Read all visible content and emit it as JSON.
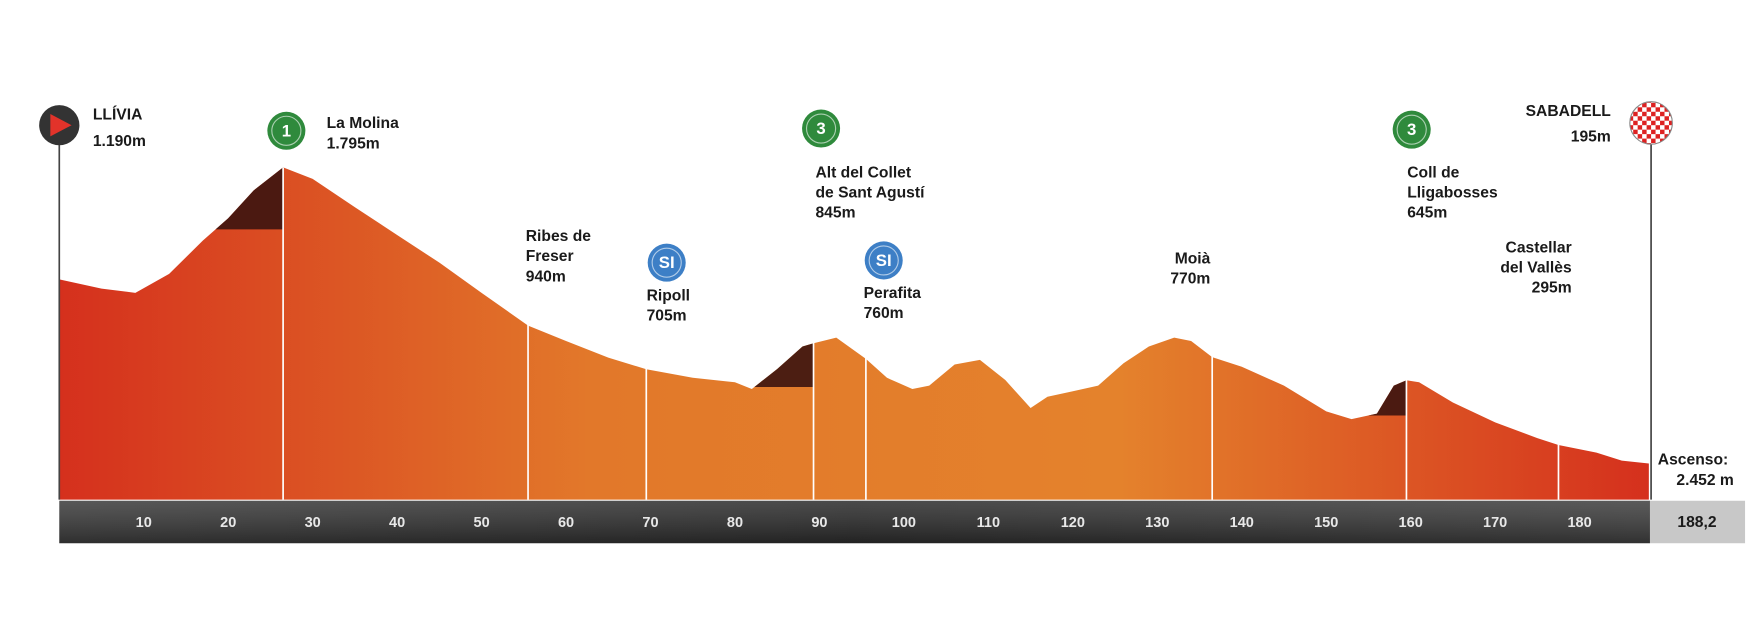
{
  "chart_data": {
    "type": "area",
    "x": [
      0,
      5,
      9,
      13,
      17,
      20,
      23,
      26.5,
      30,
      35,
      40,
      45,
      50,
      55.5,
      60,
      65,
      69.5,
      75,
      80,
      82,
      85,
      88,
      89.3,
      92,
      95.5,
      98,
      101,
      103,
      106,
      109,
      112,
      115,
      117,
      120,
      123,
      126,
      129,
      132,
      134,
      136.5,
      140,
      145,
      150,
      153,
      156,
      158,
      159.5,
      161,
      165,
      170,
      175,
      177.5,
      182,
      185,
      188.2
    ],
    "values": [
      1190,
      1140,
      1117,
      1220,
      1400,
      1520,
      1670,
      1795,
      1733,
      1580,
      1430,
      1280,
      1117,
      940,
      857,
      767,
      705,
      658,
      634,
      598,
      706,
      827,
      845,
      875,
      760,
      658,
      598,
      616,
      730,
      755,
      646,
      495,
      556,
      586,
      616,
      737,
      827,
      875,
      857,
      770,
      718,
      616,
      477,
      435,
      465,
      616,
      645,
      634,
      525,
      417,
      332,
      295,
      254,
      211,
      195
    ],
    "xlim": [
      0,
      188.2
    ],
    "xticks": [
      10,
      20,
      30,
      40,
      50,
      60,
      70,
      80,
      90,
      100,
      110,
      120,
      130,
      140,
      150,
      160,
      170,
      180
    ],
    "total_distance": {
      "value": 188.2,
      "label": "188,2"
    },
    "colors": [
      "#d5301d",
      "#e2782a",
      "#e4822c",
      "#d5301d"
    ],
    "climb_color": "#3b1410",
    "start": {
      "name": "LLÍVIA",
      "elevation": 1190,
      "elevation_label": "1.190m"
    },
    "finish": {
      "name": "SABADELL",
      "elevation": 195,
      "elevation_label": "195m"
    },
    "waypoints": [
      {
        "lines": [
          "La Molina"
        ],
        "elevation_label": "1.795m",
        "km": 26.5,
        "elevation": 1795,
        "category": "1"
      },
      {
        "lines": [
          "Ribes de",
          "Freser"
        ],
        "elevation_label": "940m",
        "km": 55.5,
        "elevation": 940
      },
      {
        "lines": [
          "Ripoll"
        ],
        "elevation_label": "705m",
        "km": 69.5,
        "elevation": 705,
        "category": "SI"
      },
      {
        "lines": [
          "Alt del Collet",
          "de Sant Agustí"
        ],
        "elevation_label": "845m",
        "km": 89.3,
        "elevation": 845,
        "category": "3"
      },
      {
        "lines": [
          "Perafita"
        ],
        "elevation_label": "760m",
        "km": 95.5,
        "elevation": 760,
        "category": "SI"
      },
      {
        "lines": [
          "Moià"
        ],
        "elevation_label": "770m",
        "km": 136.5,
        "elevation": 770
      },
      {
        "lines": [
          "Coll de",
          "Lligabosses"
        ],
        "elevation_label": "645m",
        "km": 159.5,
        "elevation": 645,
        "category": "3"
      },
      {
        "lines": [
          "Castellar",
          "del Vallès"
        ],
        "elevation_label": "295m",
        "km": 177.5,
        "elevation": 295
      }
    ],
    "ascent": {
      "label": "Ascenso:",
      "value": 2452,
      "value_label": "2.452 m"
    }
  }
}
